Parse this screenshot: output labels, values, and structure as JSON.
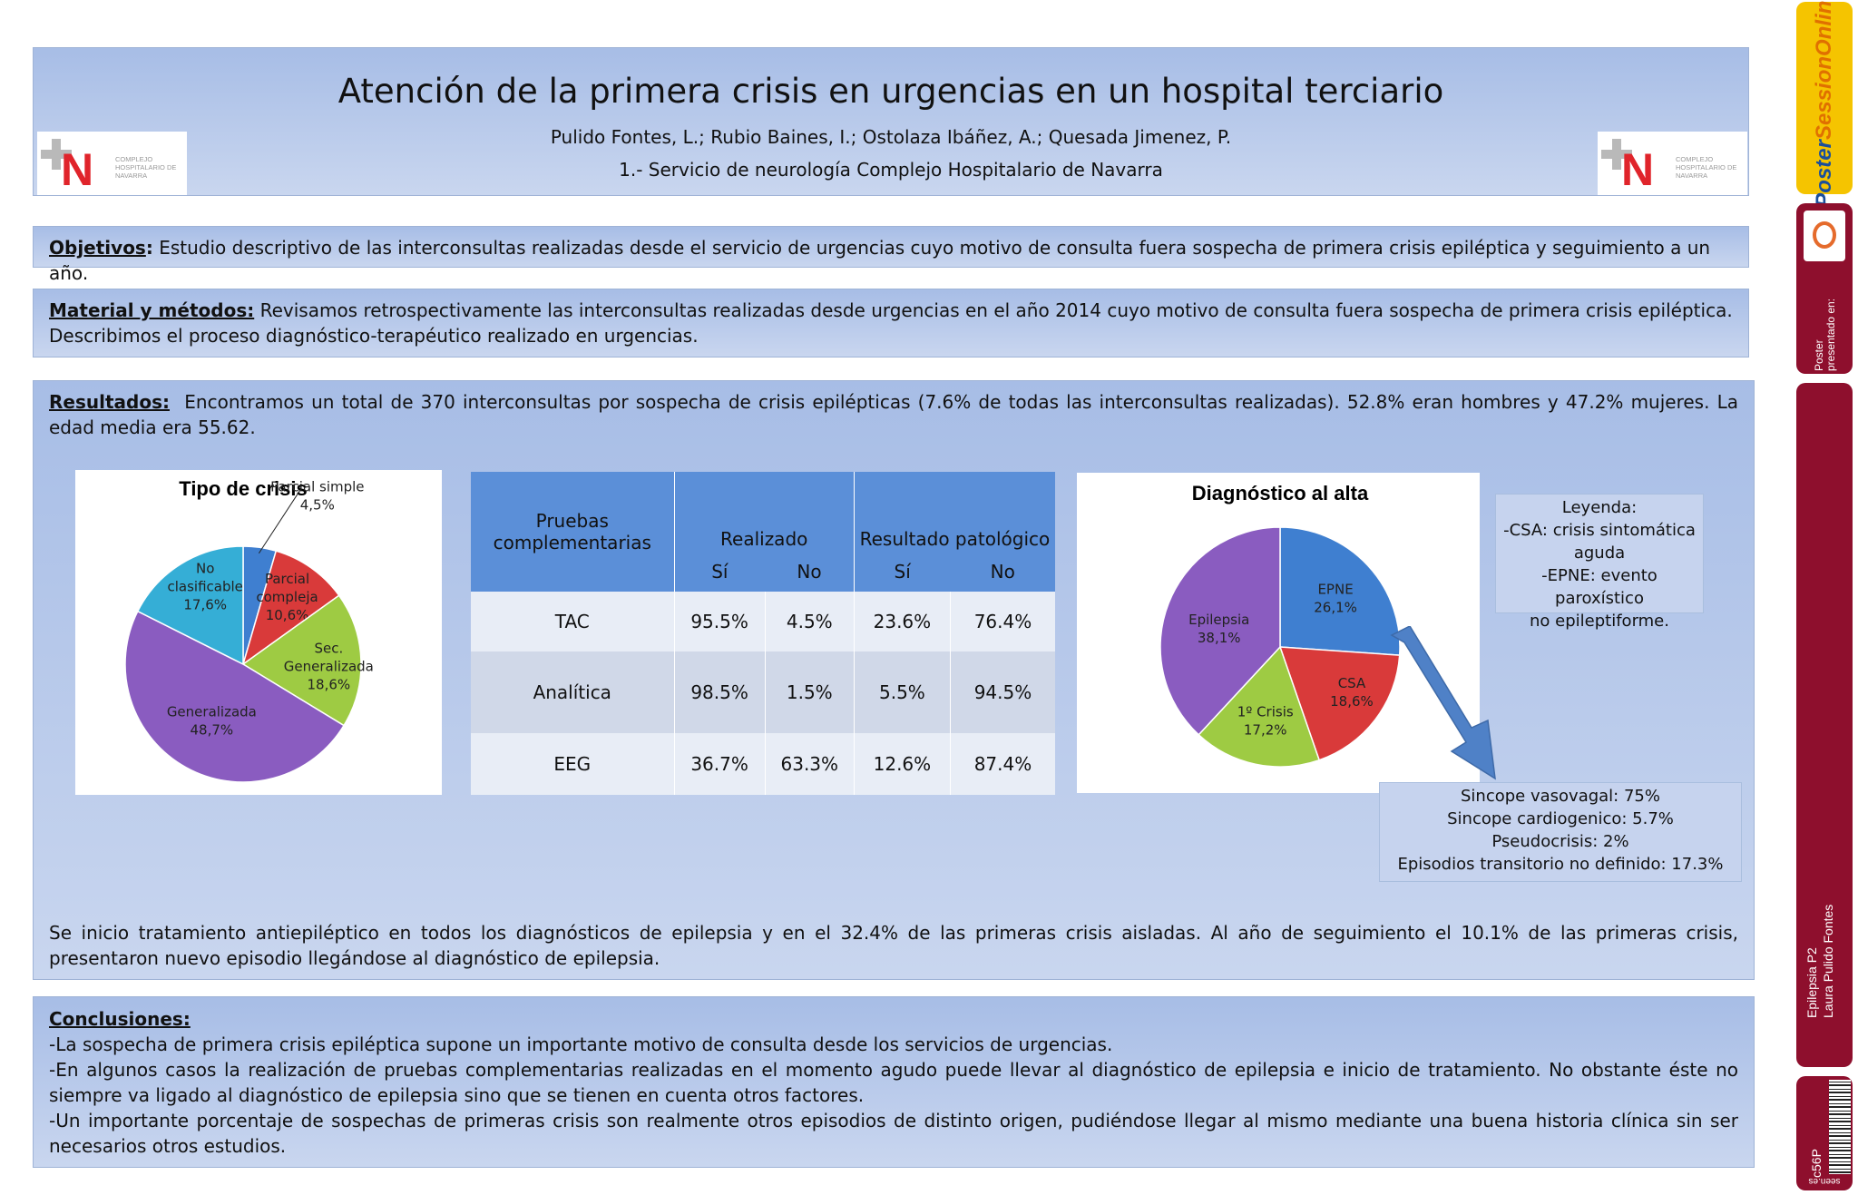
{
  "header": {
    "title": "Atención de la primera crisis en urgencias en un hospital terciario",
    "authors": "Pulido Fontes, L.; Rubio Baines, I.; Ostolaza Ibáñez, A.; Quesada Jimenez, P.",
    "affiliation": "1.- Servicio de neurología Complejo Hospitalario de Navarra",
    "logo_text": "COMPLEJO HOSPITALARIO DE NAVARRA"
  },
  "objetivos": {
    "label": "Objetivos",
    "text": "Estudio descriptivo de las interconsultas realizadas desde el servicio de urgencias cuyo motivo de consulta fuera sospecha de primera crisis epiléptica y seguimiento a un año."
  },
  "material": {
    "label": "Material y métodos:",
    "text": "Revisamos retrospectivamente las interconsultas realizadas desde urgencias en el año 2014 cuyo motivo de consulta fuera sospecha de primera crisis epiléptica. Describimos el proceso diagnóstico-terapéutico realizado en urgencias."
  },
  "resultados": {
    "label": "Resultados:",
    "text": "Encontramos un total de 370 interconsultas por sospecha de crisis epilépticas (7.6% de todas las interconsultas realizadas). 52.8% eran hombres y 47.2% mujeres. La edad media era 55.62.",
    "footer": "Se inicio tratamiento antiepiléptico en todos los diagnósticos de epilepsia y en el 32.4% de las primeras crisis aisladas. Al año de seguimiento el 10.1% de las primeras crisis, presentaron nuevo episodio llegándose al diagnóstico de epilepsia."
  },
  "table": {
    "h_pruebas": "Pruebas complementarias",
    "h_realizado": "Realizado",
    "h_resultado": "Resultado patológico",
    "si": "Sí",
    "no": "No",
    "rows": [
      {
        "name": "TAC",
        "r_si": "95.5%",
        "r_no": "4.5%",
        "p_si": "23.6%",
        "p_no": "76.4%"
      },
      {
        "name": "Analítica",
        "r_si": "98.5%",
        "r_no": "1.5%",
        "p_si": "5.5%",
        "p_no": "94.5%"
      },
      {
        "name": "EEG",
        "r_si": "36.7%",
        "r_no": "63.3%",
        "p_si": "12.6%",
        "p_no": "87.4%"
      }
    ]
  },
  "leyenda": {
    "title": "Leyenda:",
    "csa_1": "-CSA: crisis sintomática",
    "csa_2": "aguda",
    "epne_1": "-EPNE: evento paroxístico",
    "epne_2": "no epileptiforme."
  },
  "epne_detail": {
    "l1": "Sincope vasovagal: 75%",
    "l2": "Sincope cardiogenico: 5.7%",
    "l3": "Pseudocrisis: 2%",
    "l4": "Episodios transitorio no definido: 17.3%"
  },
  "conclusiones": {
    "label": "Conclusiones:",
    "l1": "-La sospecha de primera crisis epiléptica supone un importante motivo de consulta desde los servicios de urgencias.",
    "l2": "-En algunos casos la realización de pruebas complementarias realizadas en el momento agudo puede llevar al diagnóstico de epilepsia e inicio de tratamiento. No obstante éste no siempre va ligado al diagnóstico de epilepsia sino que se tienen en cuenta otros factores.",
    "l3": "-Un importante porcentaje de sospechas de primeras crisis son realmente otros episodios de distinto origen, pudiéndose llegar al mismo mediante una buena historia clínica sin ser necesarios otros estudios."
  },
  "sidebar": {
    "brand_1": "Poster",
    "brand_2": "SessionOnline",
    "presentado": "Poster presentado en:",
    "code": "Epilepsia P2",
    "author": "Laura Pulido Fontes",
    "id": "c56P",
    "barcode_text": "seen.es"
  },
  "chart_data": [
    {
      "type": "pie",
      "title": "Tipo de crisis",
      "slices": [
        {
          "label": "Parcial simple",
          "value": 4.5,
          "text": "4,5%",
          "color": "#3f7fd0"
        },
        {
          "label": "Parcial compleja",
          "value": 10.6,
          "text": "10,6%",
          "color": "#d93a3a"
        },
        {
          "label": "Sec. Generalizada",
          "value": 18.6,
          "text": "18,6%",
          "color": "#9ecb43"
        },
        {
          "label": "Generalizada",
          "value": 48.7,
          "text": "48,7%",
          "color": "#8a5cc0"
        },
        {
          "label": "No clasificable",
          "value": 17.6,
          "text": "17,6%",
          "color": "#35aed6"
        }
      ]
    },
    {
      "type": "pie",
      "title": "Diagnóstico al alta",
      "slices": [
        {
          "label": "EPNE",
          "value": 26.1,
          "text": "26,1%",
          "color": "#3f7fd0"
        },
        {
          "label": "CSA",
          "value": 18.6,
          "text": "18,6%",
          "color": "#d93a3a"
        },
        {
          "label": "1º Crisis",
          "value": 17.2,
          "text": "17,2%",
          "color": "#9ecb43"
        },
        {
          "label": "Epilepsia",
          "value": 38.1,
          "text": "38,1%",
          "color": "#8a5cc0"
        }
      ]
    }
  ]
}
